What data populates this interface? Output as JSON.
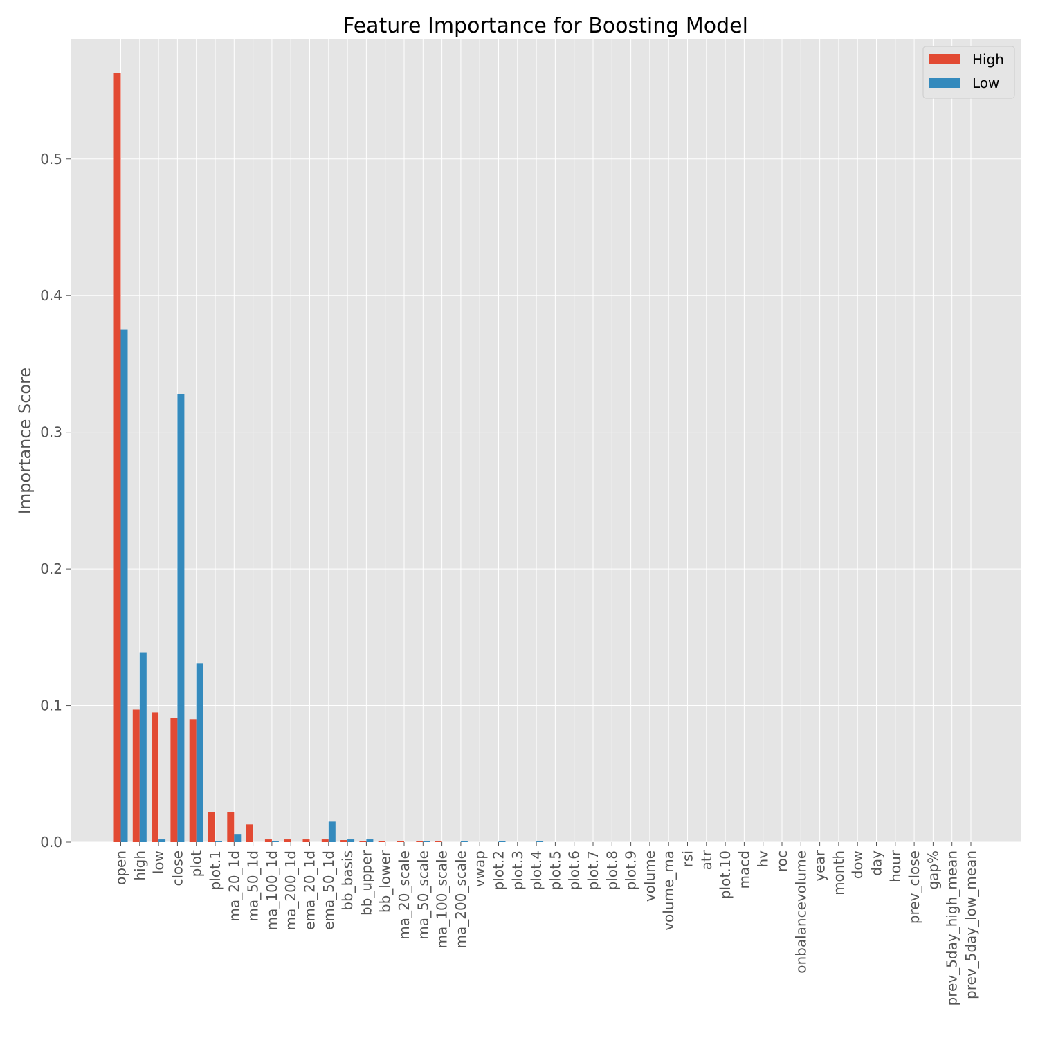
{
  "chart_data": {
    "type": "bar",
    "title": "Feature Importance for Boosting Model",
    "xlabel": "",
    "ylabel": "Importance Score",
    "ylim": [
      0,
      0.5875
    ],
    "yticks": [
      "0.0",
      "0.1",
      "0.2",
      "0.3",
      "0.4",
      "0.5"
    ],
    "grid": true,
    "legend_position": "top-right",
    "colors": {
      "plot_bg": "#E5E5E5",
      "grid": "#FFFFFF",
      "High": "#E24A33",
      "Low": "#348ABD"
    },
    "categories": [
      "open",
      "high",
      "low",
      "close",
      "plot",
      "plot.1",
      "ma_20_1d",
      "ma_50_1d",
      "ma_100_1d",
      "ma_200_1d",
      "ema_20_1d",
      "ema_50_1d",
      "bb_basis",
      "bb_upper",
      "bb_lower",
      "ma_20_scale",
      "ma_50_scale",
      "ma_100_scale",
      "ma_200_scale",
      "vwap",
      "plot.2",
      "plot.3",
      "plot.4",
      "plot.5",
      "plot.6",
      "plot.7",
      "plot.8",
      "plot.9",
      "volume",
      "volume_ma",
      "rsi",
      "atr",
      "plot.10",
      "macd",
      "hv",
      "roc",
      "onbalancevolume",
      "year",
      "month",
      "dow",
      "day",
      "hour",
      "prev_close",
      "gap%",
      "prev_5day_high_mean",
      "prev_5day_low_mean"
    ],
    "series": [
      {
        "name": "High",
        "values": [
          0.563,
          0.097,
          0.095,
          0.091,
          0.09,
          0.022,
          0.022,
          0.013,
          0.002,
          0.002,
          0.002,
          0.002,
          0.0015,
          0.001,
          0.0008,
          0.0008,
          0.0005,
          0.0005,
          0,
          0,
          0,
          0,
          0,
          0,
          0,
          0,
          0,
          0,
          0,
          0,
          0,
          0,
          0,
          0,
          0,
          0,
          0,
          0,
          0,
          0,
          0,
          0,
          0,
          0,
          0,
          0
        ]
      },
      {
        "name": "Low",
        "values": [
          0.375,
          0.139,
          0.002,
          0.328,
          0.131,
          0.001,
          0.006,
          0,
          0.001,
          0,
          0,
          0.015,
          0.002,
          0.002,
          0,
          0,
          0.001,
          0,
          0.001,
          0,
          0.001,
          0,
          0.001,
          0,
          0,
          0,
          0,
          0,
          0,
          0,
          0,
          0,
          0,
          0,
          0,
          0,
          0,
          0,
          0,
          0,
          0,
          0,
          0,
          0,
          0,
          0
        ]
      }
    ]
  }
}
